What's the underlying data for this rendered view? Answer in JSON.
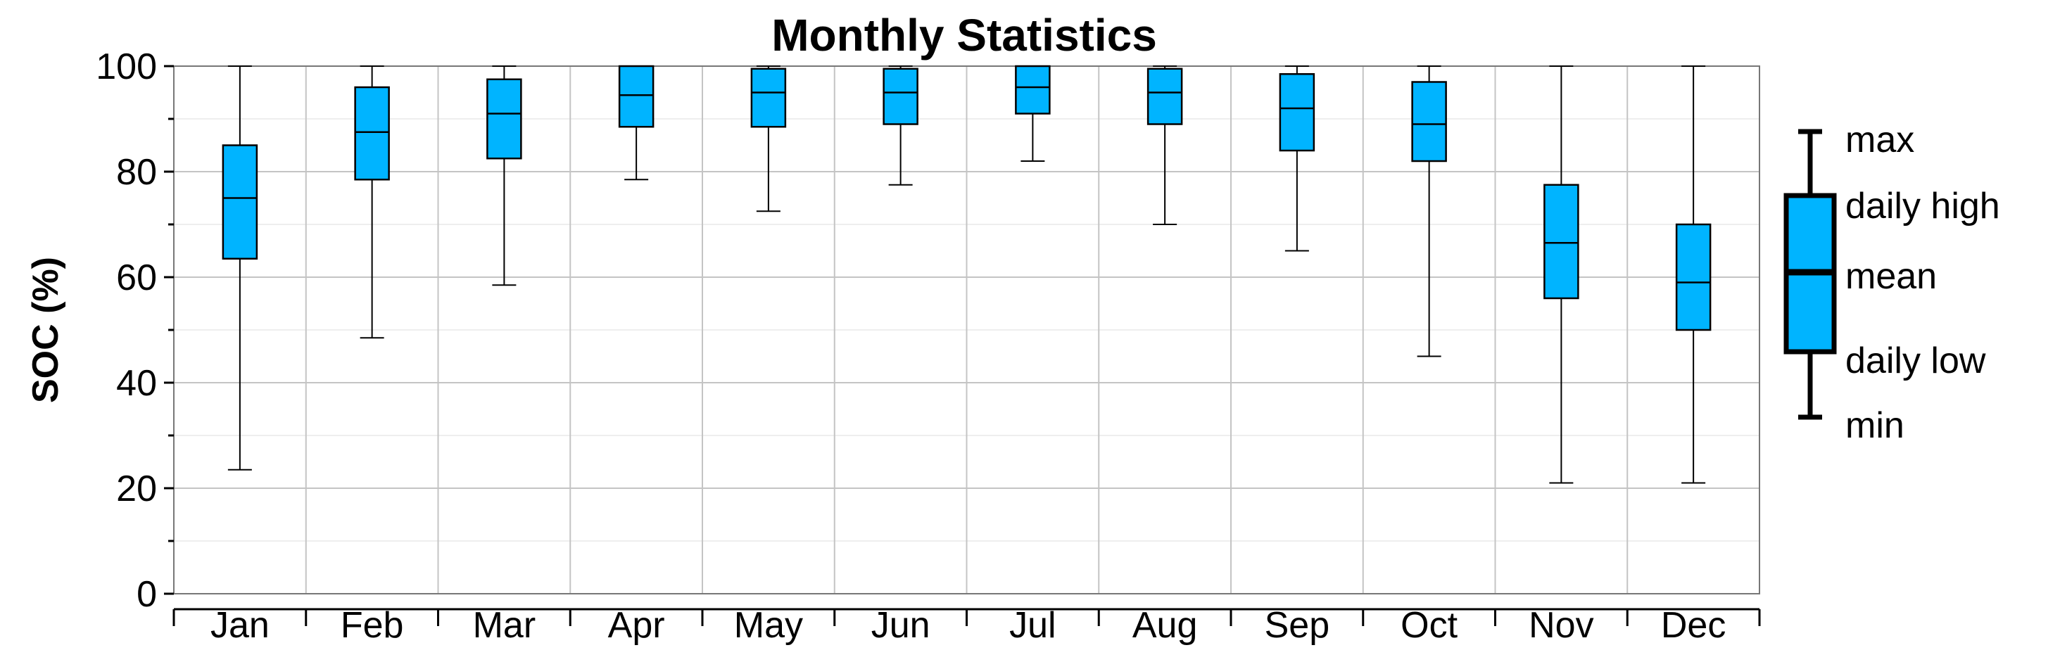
{
  "chart_data": {
    "type": "box",
    "title": "Monthly Statistics",
    "xlabel": "",
    "ylabel": "SOC (%)",
    "ylim": [
      0,
      100
    ],
    "yticks": [
      "0",
      "20",
      "40",
      "60",
      "80",
      "100"
    ],
    "grid": true,
    "legend_position": "right",
    "categories": [
      "Jan",
      "Feb",
      "Mar",
      "Apr",
      "May",
      "Jun",
      "Jul",
      "Aug",
      "Sep",
      "Oct",
      "Nov",
      "Dec"
    ],
    "series": [
      {
        "max": [
          100,
          100,
          100,
          100,
          100,
          100,
          100,
          100,
          100,
          100,
          100,
          100
        ],
        "daily_high": [
          85,
          96,
          97.5,
          100,
          99.5,
          99.5,
          100,
          99.5,
          98.5,
          97,
          77.5,
          70
        ],
        "mean": [
          75,
          87.5,
          91,
          94.5,
          95,
          95,
          96,
          95,
          92,
          89,
          66.5,
          59
        ],
        "daily_low": [
          63.5,
          78.5,
          82.5,
          88.5,
          88.5,
          89,
          91,
          89,
          84,
          82,
          56,
          50
        ],
        "min": [
          23.5,
          48.5,
          58.5,
          78.5,
          72.5,
          77.5,
          82,
          70,
          65,
          45,
          21,
          21
        ]
      }
    ],
    "legend": {
      "max_label": "max",
      "high_label": "daily high",
      "mean_label": "mean",
      "low_label": "daily low",
      "min_label": "min"
    },
    "colors": {
      "box_fill": "#00B4FF",
      "outline": "#000000",
      "grid": "#c4c4c4",
      "grid_minor": "#eeeeee"
    }
  }
}
